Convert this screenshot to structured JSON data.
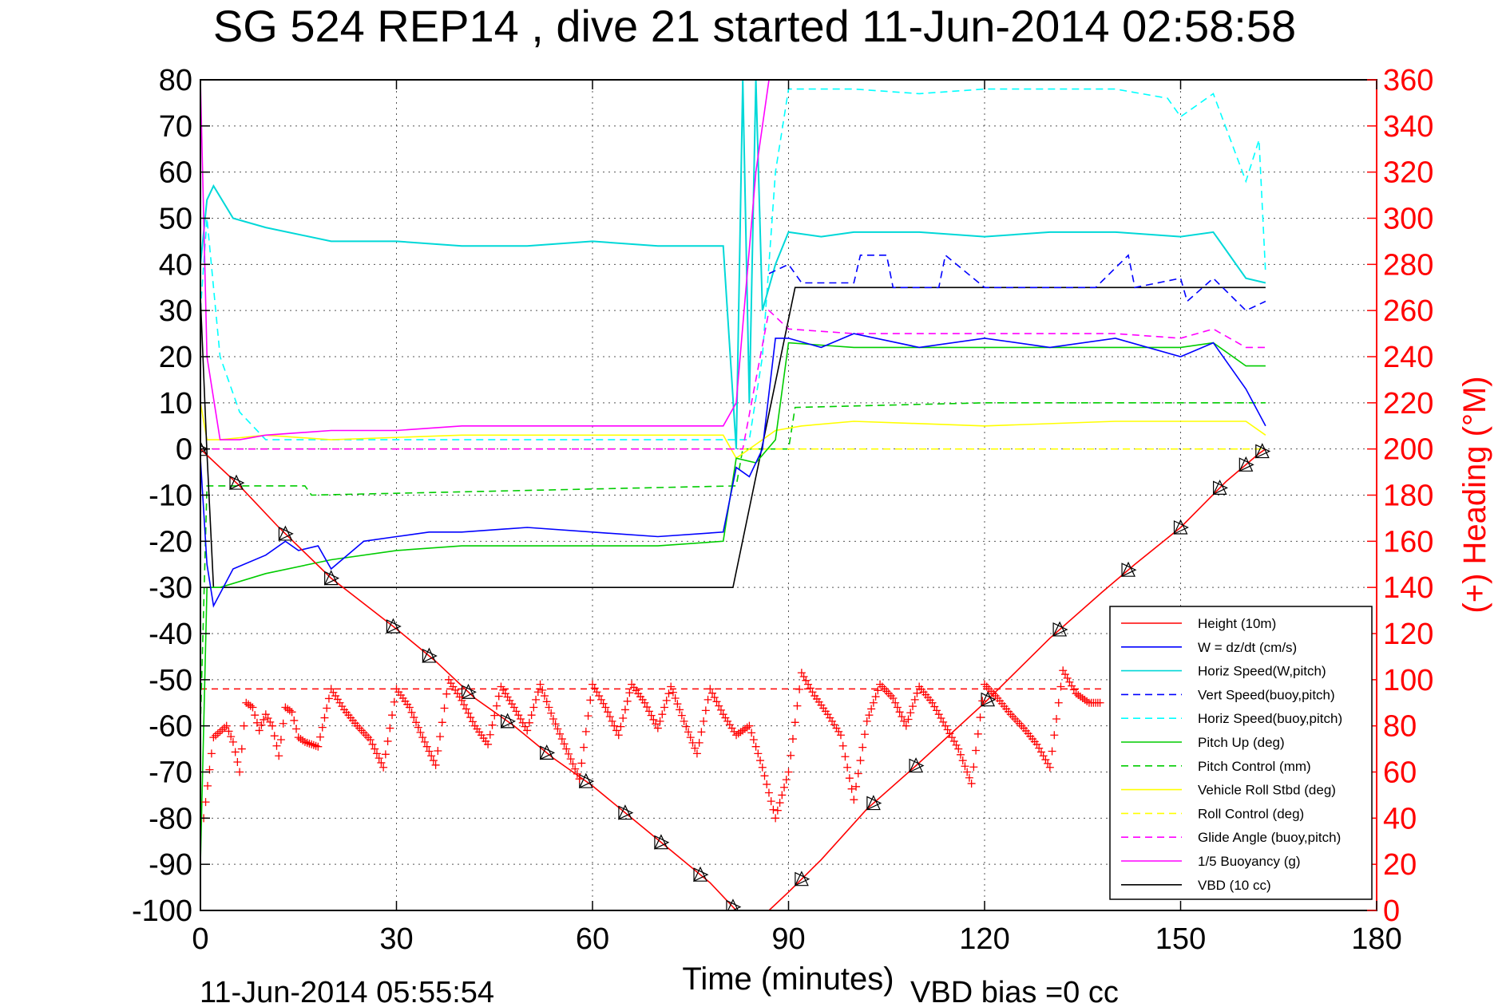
{
  "title": "SG 524   REP14  , dive 21 started 11-Jun-2014 02:58:58",
  "footer_left": "11-Jun-2014 05:55:54",
  "footer_right": "VBD bias =0 cc",
  "chart_data": {
    "type": "line",
    "xlabel": "Time (minutes)",
    "ylabel": "",
    "y2label": "(+) Heading (°M)",
    "xlim": [
      0,
      180
    ],
    "ylim": [
      -100,
      80
    ],
    "y2lim": [
      0,
      360
    ],
    "xticks": [
      0,
      30,
      60,
      90,
      120,
      150,
      180
    ],
    "yticks": [
      80,
      70,
      60,
      50,
      40,
      30,
      20,
      10,
      0,
      -10,
      -20,
      -30,
      -40,
      -50,
      -60,
      -70,
      -80,
      -90,
      -100
    ],
    "y2ticks": [
      360,
      340,
      320,
      300,
      280,
      260,
      240,
      220,
      200,
      180,
      160,
      140,
      120,
      100,
      80,
      60,
      40,
      20,
      0
    ],
    "grid": true,
    "legend_position": "bottom-right",
    "series": [
      {
        "name": "Height (10m)",
        "color": "#ff0000",
        "style": "solid",
        "x": [
          0,
          6,
          12,
          20,
          30,
          36,
          42,
          48,
          54,
          60,
          66,
          72,
          78,
          82,
          84,
          87,
          90,
          95,
          102,
          110,
          120,
          130,
          138,
          143,
          150,
          157,
          162,
          163
        ],
        "y": [
          0,
          -8,
          -17,
          -28,
          -39,
          -46,
          -54,
          -60,
          -67,
          -73,
          -80,
          -87,
          -94,
          -100,
          -100,
          -100,
          -96,
          -89,
          -78,
          -68,
          -55,
          -41,
          -31,
          -25,
          -17,
          -7,
          -1,
          0
        ],
        "markers": [
          0,
          5.5,
          13,
          20,
          29.5,
          35,
          41,
          47,
          53,
          59,
          65,
          70.5,
          76.5,
          81.5,
          92,
          103,
          109.5,
          120.5,
          131.5,
          142,
          150,
          156,
          160,
          162.5
        ]
      },
      {
        "name": "W = dz/dt (cm/s)",
        "color": "#0000ff",
        "style": "solid",
        "x": [
          0,
          1,
          2,
          5,
          10,
          13,
          15,
          18,
          20,
          25,
          30,
          35,
          40,
          50,
          60,
          70,
          80,
          82,
          84,
          86,
          88,
          90,
          95,
          100,
          110,
          120,
          130,
          140,
          150,
          155,
          160,
          163
        ],
        "y": [
          -2,
          -25,
          -34,
          -26,
          -23,
          -20,
          -22,
          -21,
          -26,
          -20,
          -19,
          -18,
          -18,
          -17,
          -18,
          -19,
          -18,
          -4,
          -6,
          0,
          24,
          24,
          22,
          25,
          22,
          24,
          22,
          24,
          20,
          23,
          13,
          5
        ]
      },
      {
        "name": "Horiz Speed(W,pitch)",
        "color": "#00d8d8",
        "style": "solid",
        "x": [
          0,
          1,
          2,
          5,
          10,
          20,
          30,
          40,
          50,
          60,
          70,
          80,
          82,
          83,
          84,
          85,
          86,
          88,
          90,
          95,
          100,
          110,
          120,
          130,
          140,
          150,
          155,
          160,
          163
        ],
        "y": [
          40,
          54,
          57,
          50,
          48,
          45,
          45,
          44,
          44,
          45,
          44,
          44,
          0,
          80,
          10,
          80,
          30,
          40,
          47,
          46,
          47,
          47,
          46,
          47,
          47,
          46,
          47,
          37,
          36
        ]
      },
      {
        "name": "Vert Speed(buoy,pitch)",
        "color": "#0000ff",
        "style": "dashed",
        "x": [
          87,
          90,
          92,
          100,
          101,
          105,
          106,
          113,
          114,
          120,
          130,
          137,
          142,
          143,
          150,
          151,
          155,
          160,
          163
        ],
        "y": [
          38,
          40,
          36,
          36,
          42,
          42,
          35,
          35,
          42,
          35,
          35,
          35,
          42,
          35,
          37,
          32,
          37,
          30,
          32
        ]
      },
      {
        "name": "Horiz Speed(buoy,pitch)",
        "color": "#00ffff",
        "style": "dashed",
        "x": [
          0,
          1,
          3,
          6,
          10,
          84,
          86,
          88,
          90,
          100,
          110,
          120,
          130,
          140,
          148,
          150,
          155,
          160,
          162,
          163
        ],
        "y": [
          30,
          50,
          20,
          8,
          2,
          2,
          20,
          60,
          78,
          78,
          77,
          78,
          78,
          78,
          76,
          72,
          77,
          58,
          67,
          38
        ]
      },
      {
        "name": "Pitch Up (deg)",
        "color": "#00cc00",
        "style": "solid",
        "x": [
          0,
          1,
          3,
          10,
          20,
          30,
          40,
          50,
          60,
          70,
          80,
          82,
          85,
          88,
          90,
          100,
          110,
          120,
          130,
          140,
          150,
          155,
          160,
          163
        ],
        "y": [
          -90,
          -30,
          -30,
          -27,
          -24,
          -22,
          -21,
          -21,
          -21,
          -21,
          -20,
          -2,
          -3,
          2,
          23,
          22,
          22,
          22,
          22,
          22,
          22,
          23,
          18,
          18
        ]
      },
      {
        "name": "Pitch Control (mm)",
        "color": "#00cc00",
        "style": "dashed",
        "x": [
          0,
          1,
          2,
          10,
          16,
          17,
          82,
          83,
          90,
          91,
          120,
          163
        ],
        "y": [
          -60,
          -8,
          -8,
          -8,
          -8,
          -10,
          -8,
          0,
          0,
          9,
          10,
          10
        ]
      },
      {
        "name": "Vehicle Roll Stbd (deg)",
        "color": "#ffff00",
        "style": "solid",
        "x": [
          0,
          1,
          3,
          10,
          20,
          40,
          60,
          80,
          82,
          86,
          88,
          92,
          100,
          120,
          140,
          160,
          163
        ],
        "y": [
          10,
          2,
          2,
          3,
          2,
          3,
          3,
          3,
          -2,
          2,
          4,
          5,
          6,
          5,
          6,
          6,
          3
        ]
      },
      {
        "name": "Roll Control (deg)",
        "color": "#ffff00",
        "style": "dashed",
        "x": [
          0,
          20,
          40,
          60,
          82,
          90,
          120,
          163
        ],
        "y": [
          0,
          0,
          0,
          0,
          0,
          0,
          0,
          0
        ]
      },
      {
        "name": "Glide Angle (buoy,pitch)",
        "color": "#ff00ff",
        "style": "dashed",
        "x": [
          0,
          82,
          83,
          87,
          90,
          100,
          120,
          140,
          150,
          155,
          160,
          163
        ],
        "y": [
          0,
          0,
          0,
          30,
          26,
          25,
          25,
          25,
          24,
          26,
          22,
          22
        ]
      },
      {
        "name": "1/5 Buoyancy (g)",
        "color": "#ff00ff",
        "style": "solid",
        "x": [
          0,
          1,
          3,
          6,
          10,
          20,
          30,
          40,
          50,
          60,
          70,
          80,
          82,
          85,
          87
        ],
        "y": [
          80,
          20,
          2,
          2,
          3,
          4,
          4,
          5,
          5,
          5,
          5,
          5,
          10,
          60,
          80
        ]
      },
      {
        "name": "VBD (10 cc)",
        "color": "#000000",
        "style": "solid",
        "x": [
          0,
          1,
          2,
          81.5,
          91,
          163
        ],
        "y": [
          33,
          -1,
          -30,
          -30,
          35,
          35
        ]
      }
    ],
    "heading_series": {
      "name": "Heading",
      "color": "#ff0000",
      "axis": "right",
      "marker": "+",
      "reference_value": 96,
      "x": [
        0.5,
        2,
        4,
        5,
        6,
        7,
        8,
        9,
        10,
        11,
        12,
        13,
        14,
        15,
        16,
        18,
        20,
        22,
        24,
        26,
        28,
        30,
        32,
        34,
        36,
        38,
        40,
        42,
        44,
        46,
        48,
        50,
        52,
        54,
        56,
        58,
        60,
        62,
        64,
        66,
        68,
        70,
        72,
        74,
        76,
        78,
        80,
        82,
        84,
        86,
        88,
        90,
        92,
        94,
        96,
        98,
        100,
        102,
        104,
        106,
        108,
        110,
        112,
        114,
        116,
        118,
        120,
        122,
        124,
        126,
        128,
        130,
        132,
        134,
        136,
        138
      ],
      "y": [
        40,
        75,
        80,
        73,
        60,
        90,
        88,
        78,
        85,
        80,
        67,
        88,
        86,
        75,
        73,
        71,
        96,
        87,
        80,
        74,
        62,
        96,
        88,
        75,
        63,
        100,
        91,
        80,
        72,
        97,
        88,
        78,
        98,
        83,
        70,
        57,
        98,
        88,
        76,
        98,
        90,
        79,
        97,
        82,
        68,
        96,
        85,
        76,
        80,
        62,
        40,
        60,
        103,
        93,
        85,
        76,
        48,
        82,
        98,
        92,
        80,
        97,
        90,
        80,
        70,
        55,
        98,
        92,
        85,
        79,
        72,
        62,
        104,
        94,
        90,
        90
      ]
    }
  }
}
